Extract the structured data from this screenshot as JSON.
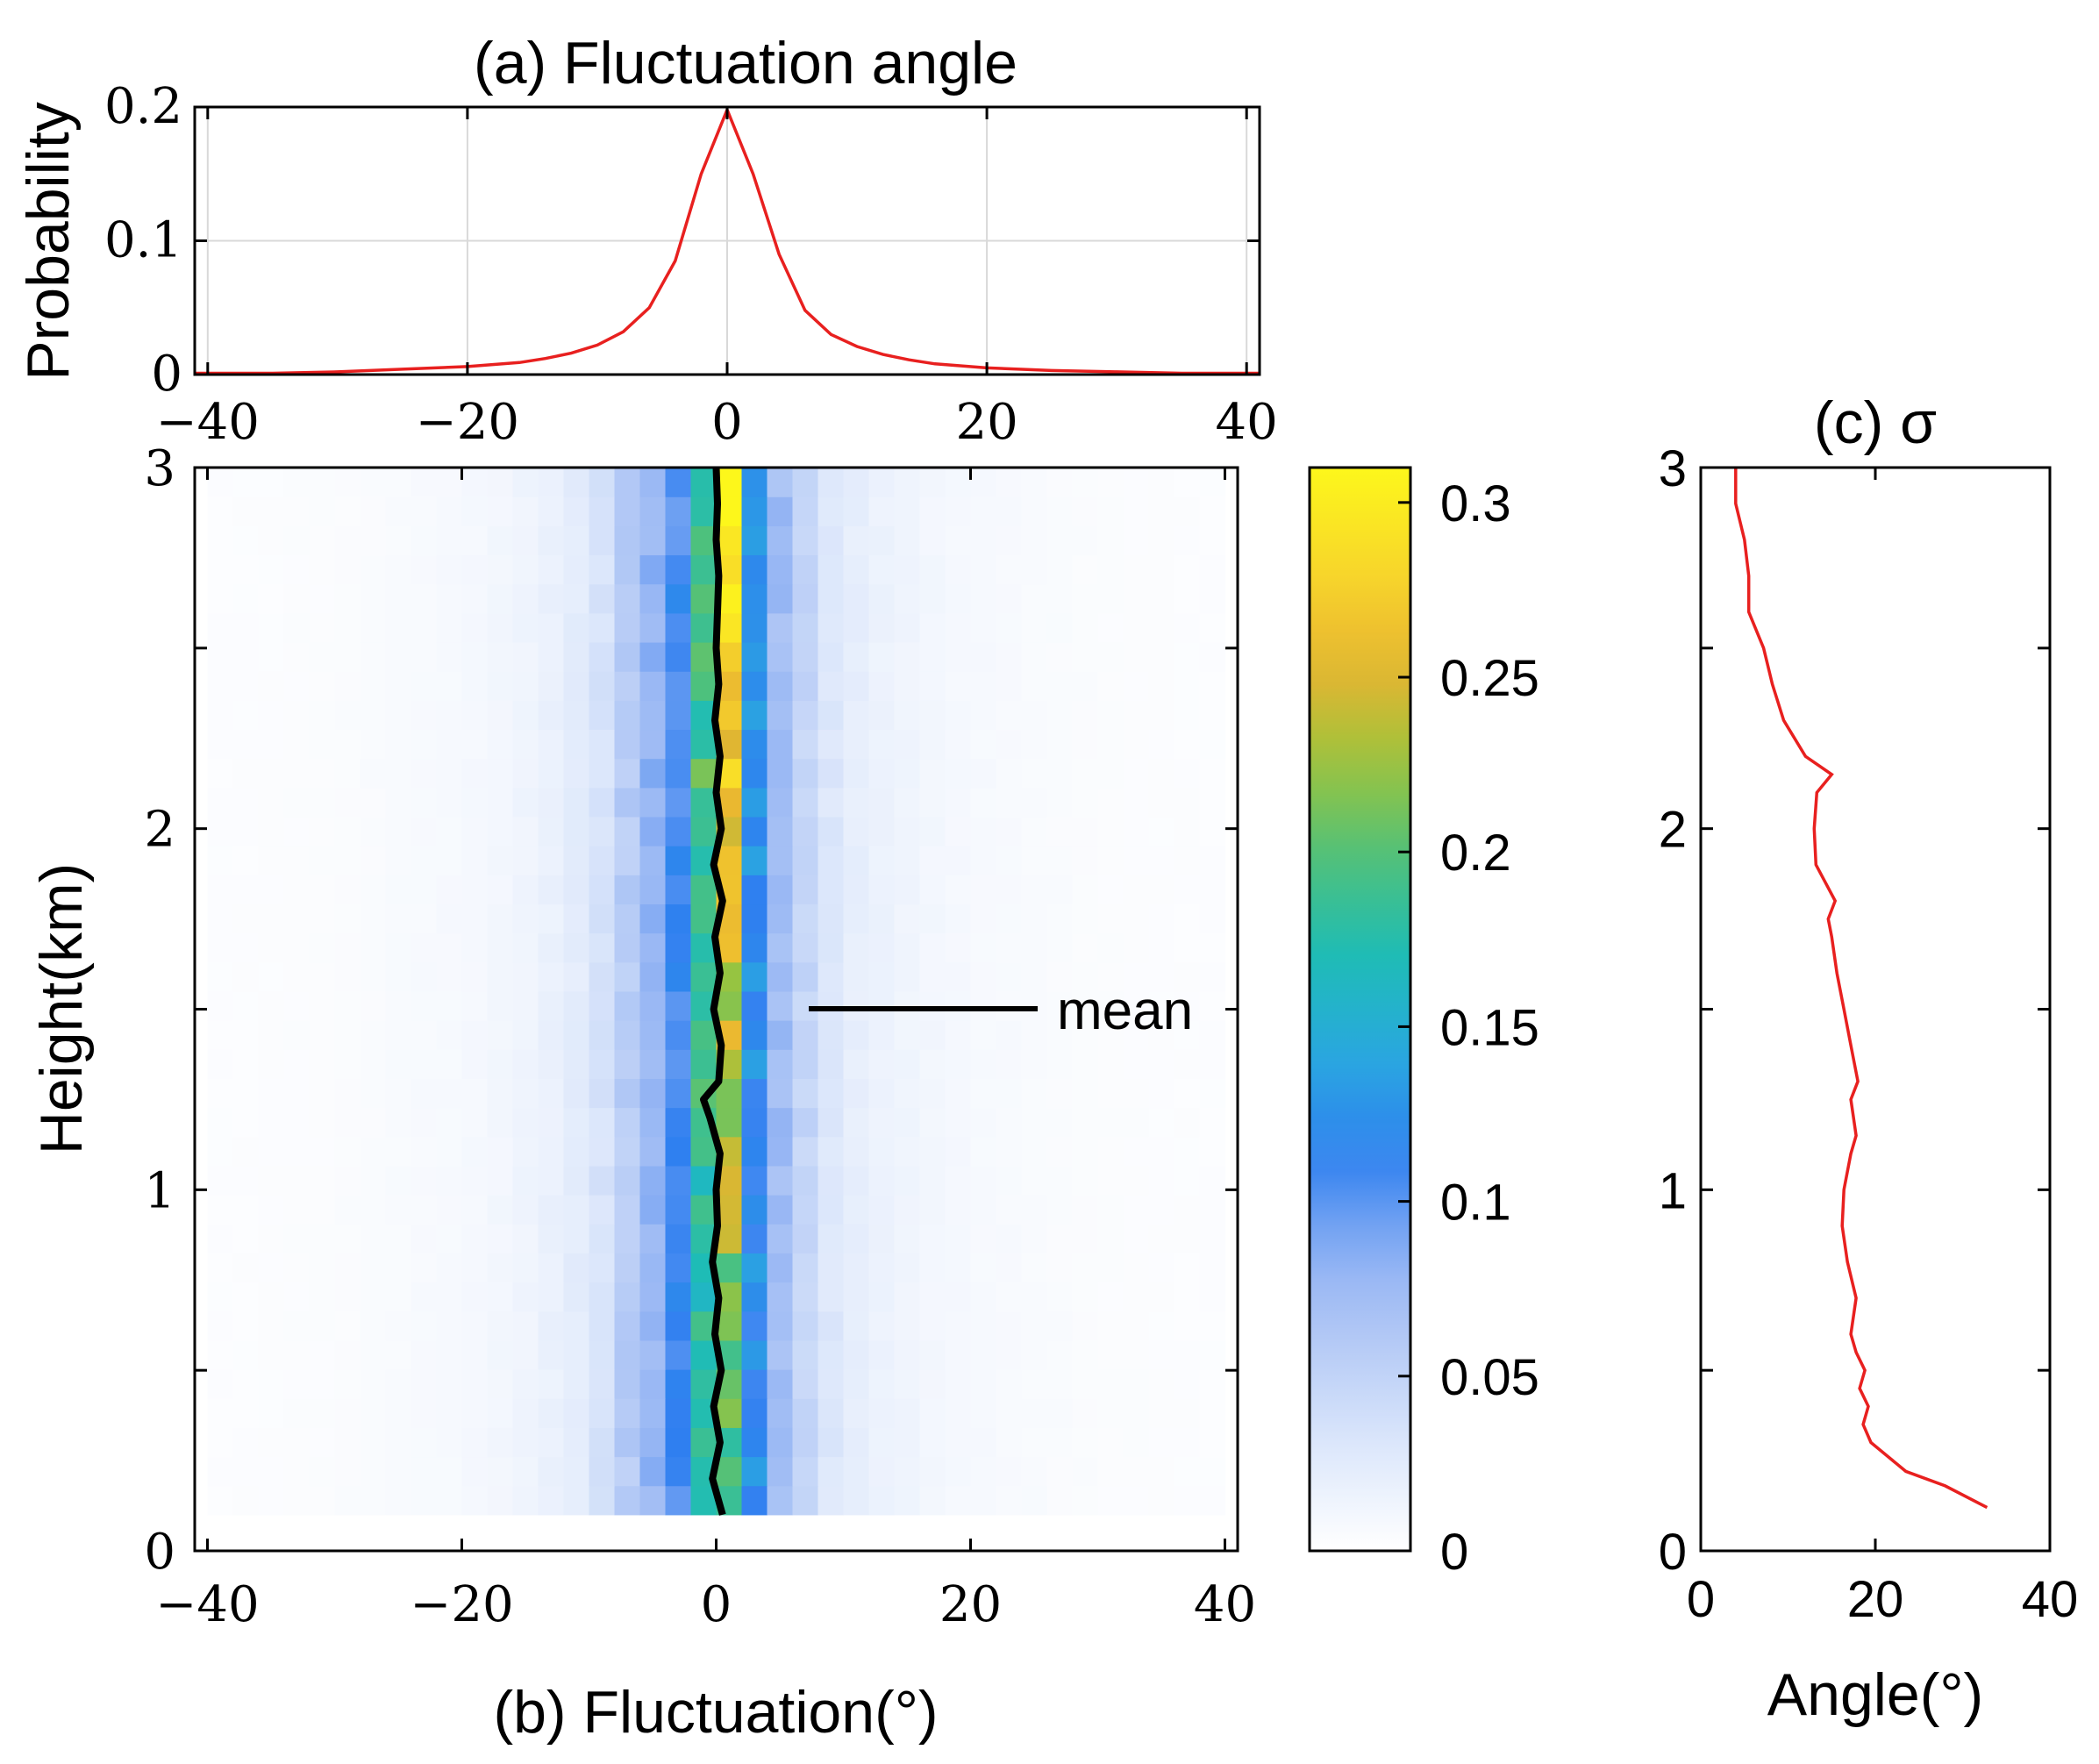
{
  "colors": {
    "line_red": "#e8201f",
    "mean_line": "#000000",
    "grid": "#d9d9d9",
    "colormap": [
      "#ffffff",
      "#dfe9fb",
      "#b9cdf6",
      "#8fb1f3",
      "#2f7ff0",
      "#2aa7e0",
      "#1dbcb8",
      "#4cc17e",
      "#9cc43c",
      "#e9b431",
      "#f8d92a",
      "#fdf71b"
    ]
  },
  "chart_data": [
    {
      "id": "a",
      "type": "line",
      "title": "(a) Fluctuation angle",
      "xlabel": "",
      "ylabel": "Probability",
      "xlim": [
        -41,
        41
      ],
      "ylim": [
        0,
        0.2
      ],
      "xticks": [
        -40,
        -20,
        0,
        20,
        40
      ],
      "xtick_labels": [
        "−40",
        "−20",
        "0",
        "20",
        "40"
      ],
      "yticks": [
        0,
        0.1,
        0.2
      ],
      "ytick_labels": [
        "0",
        "0.1",
        "0.2"
      ],
      "grid": true,
      "series": [
        {
          "name": "probability",
          "x": [
            -41,
            -35,
            -30,
            -25,
            -20,
            -16,
            -14,
            -12,
            -10,
            -8,
            -6,
            -4,
            -2,
            0,
            2,
            4,
            6,
            8,
            10,
            12,
            14,
            16,
            20,
            25,
            30,
            35,
            41
          ],
          "values": [
            0.001,
            0.001,
            0.002,
            0.004,
            0.006,
            0.009,
            0.012,
            0.016,
            0.022,
            0.032,
            0.05,
            0.085,
            0.15,
            0.198,
            0.15,
            0.09,
            0.048,
            0.03,
            0.021,
            0.015,
            0.011,
            0.008,
            0.005,
            0.003,
            0.002,
            0.001,
            0.001
          ]
        }
      ]
    },
    {
      "id": "b",
      "type": "heatmap",
      "xlabel": "(b) Fluctuation(°)",
      "ylabel": "Height(km)",
      "xlim": [
        -41,
        41
      ],
      "ylim": [
        0,
        3
      ],
      "xticks": [
        -40,
        -20,
        0,
        20,
        40
      ],
      "xtick_labels": [
        "−40",
        "−20",
        "0",
        "20",
        "40"
      ],
      "yticks": [
        0,
        1,
        2,
        3
      ],
      "ytick_labels": [
        "0",
        "1",
        "2",
        "3"
      ],
      "bin_width_deg": 2,
      "bins_x_range": [
        -40,
        40
      ],
      "height_range_km": [
        0.1,
        3.0
      ],
      "height_bins": 36,
      "value_rule": "value(fluctuation) = bin_profile + top_boost * height/3",
      "bin_profile": {
        "fluctuation": [
          -40,
          -30,
          -20,
          -16,
          -12,
          -10,
          -8,
          -6,
          -4,
          -2,
          0,
          2,
          4,
          6,
          8,
          10,
          12,
          16,
          20,
          30,
          40
        ],
        "value": [
          0.003,
          0.004,
          0.008,
          0.012,
          0.02,
          0.028,
          0.04,
          0.075,
          0.085,
          0.13,
          0.21,
          0.16,
          0.085,
          0.06,
          0.035,
          0.025,
          0.018,
          0.012,
          0.008,
          0.004,
          0.003
        ]
      },
      "top_boost_center_bin": 0.12,
      "colorbar": {
        "min": 0,
        "max": 0.31,
        "ticks": [
          0,
          0.05,
          0.1,
          0.15,
          0.2,
          0.25,
          0.3
        ],
        "tick_labels": [
          "0",
          "0.05",
          "0.1",
          "0.15",
          "0.2",
          "0.25",
          "0.3"
        ]
      },
      "mean_series": {
        "name": "mean",
        "height": [
          0.1,
          0.2,
          0.3,
          0.4,
          0.5,
          0.6,
          0.7,
          0.8,
          0.9,
          1.0,
          1.1,
          1.2,
          1.25,
          1.3,
          1.4,
          1.5,
          1.6,
          1.7,
          1.8,
          1.9,
          2.0,
          2.1,
          2.2,
          2.3,
          2.4,
          2.5,
          2.6,
          2.7,
          2.8,
          2.9,
          3.0
        ],
        "fluctuation": [
          0.5,
          -0.3,
          0.3,
          -0.2,
          0.4,
          -0.1,
          0.2,
          -0.3,
          0.1,
          0.0,
          0.3,
          -0.5,
          -1.0,
          0.2,
          0.4,
          -0.2,
          0.3,
          -0.1,
          0.5,
          -0.2,
          0.4,
          0.0,
          0.3,
          -0.1,
          0.2,
          0.0,
          0.1,
          0.2,
          0.0,
          0.1,
          0.0
        ]
      },
      "legend_label": "mean",
      "legend_position": "center-right"
    },
    {
      "id": "c",
      "type": "line",
      "title": "(c) σ",
      "xlabel": "Angle(°)",
      "ylabel": "",
      "xlim": [
        0,
        40
      ],
      "ylim": [
        0,
        3
      ],
      "xticks": [
        0,
        20,
        40
      ],
      "xtick_labels": [
        "0",
        "20",
        "40"
      ],
      "yticks": [
        0,
        1,
        2,
        3
      ],
      "ytick_labels": [
        "0",
        "1",
        "2",
        "3"
      ],
      "series": [
        {
          "name": "sigma",
          "height": [
            0.12,
            0.18,
            0.22,
            0.3,
            0.35,
            0.4,
            0.45,
            0.5,
            0.55,
            0.6,
            0.7,
            0.8,
            0.9,
            1.0,
            1.1,
            1.15,
            1.25,
            1.3,
            1.4,
            1.5,
            1.6,
            1.7,
            1.75,
            1.8,
            1.9,
            2.0,
            2.1,
            2.15,
            2.2,
            2.3,
            2.4,
            2.5,
            2.6,
            2.7,
            2.8,
            2.9,
            3.0
          ],
          "angle": [
            32.8,
            28,
            23.5,
            19.5,
            18.6,
            19.2,
            18.2,
            18.8,
            17.8,
            17.2,
            17.8,
            16.8,
            16.2,
            16.4,
            17.2,
            17.8,
            17.2,
            18.0,
            17.2,
            16.4,
            15.6,
            15.0,
            14.6,
            15.4,
            13.2,
            13.0,
            13.3,
            15.0,
            12.0,
            9.5,
            8.2,
            7.2,
            5.5,
            5.5,
            5.0,
            4.0,
            4.0
          ]
        }
      ]
    }
  ]
}
